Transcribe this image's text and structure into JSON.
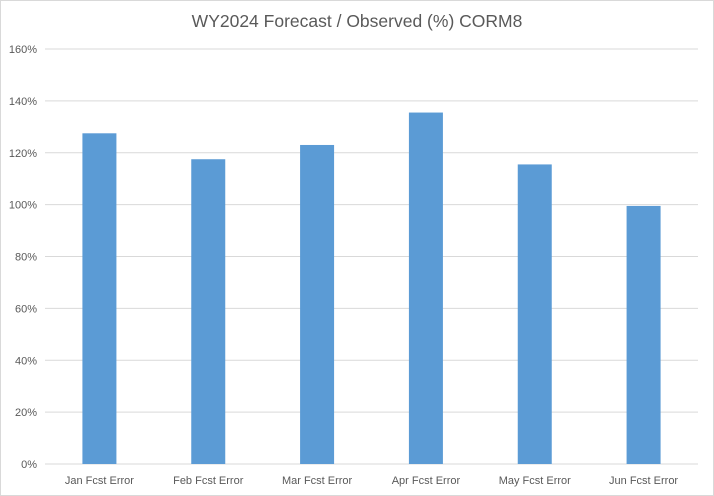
{
  "chart_data": {
    "type": "bar",
    "title": "WY2024 Forecast / Observed (%) CORM8",
    "xlabel": "",
    "ylabel": "",
    "categories": [
      "Jan Fcst Error",
      "Feb Fcst Error",
      "Mar Fcst Error",
      "Apr Fcst Error",
      "May Fcst Error",
      "Jun Fcst Error"
    ],
    "values": [
      127.5,
      117.5,
      123,
      135.5,
      115.5,
      99.5
    ],
    "value_unit": "%",
    "ylim": [
      0,
      160
    ],
    "yticks": [
      "0%",
      "20%",
      "40%",
      "60%",
      "80%",
      "100%",
      "120%",
      "140%",
      "160%"
    ],
    "grid": true,
    "legend": "none",
    "colors": {
      "bar": "#5b9bd5",
      "grid": "#d9d9d9",
      "text": "#595959"
    }
  }
}
